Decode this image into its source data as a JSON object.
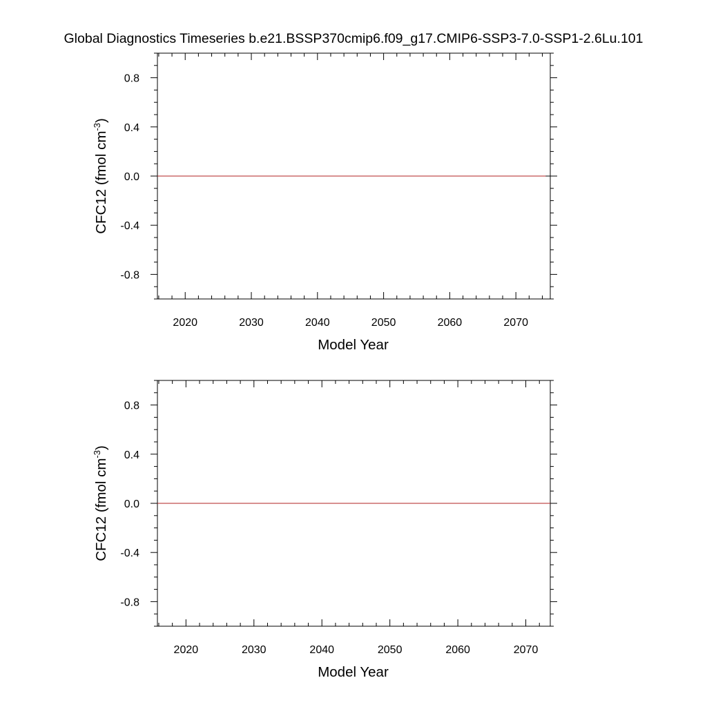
{
  "title": "Global Diagnostics Timeseries b.e21.BSSP370cmip6.f09_g17.CMIP6-SSP3-7.0-SSP1-2.6Lu.101",
  "chart_data": [
    {
      "type": "line",
      "xlabel": "Model Year",
      "ylabel": "CFC12 (fmol cm",
      "ylabel_sup": "-3",
      "ylabel_close": ")",
      "xlim": [
        2015.8,
        2075.2
      ],
      "ylim": [
        -1.0,
        1.0
      ],
      "x_ticks": [
        2020,
        2030,
        2040,
        2050,
        2060,
        2070
      ],
      "y_ticks": [
        0.8,
        0.4,
        0.0,
        -0.4,
        -0.8
      ],
      "y_tick_labels": [
        "0.8",
        "0.4",
        "0.0",
        "-0.4",
        "-0.8"
      ],
      "series": [
        {
          "color": "#b22222",
          "x": [
            2015.8,
            2074.5
          ],
          "y": [
            0.0,
            0.0
          ]
        }
      ],
      "grid": false
    },
    {
      "type": "line",
      "xlabel": "Model Year",
      "ylabel": "CFC12 (fmol cm",
      "ylabel_sup": "-3",
      "ylabel_close": ")",
      "xlim": [
        2015.8,
        2073.6
      ],
      "ylim": [
        -1.0,
        1.0
      ],
      "x_ticks": [
        2020,
        2030,
        2040,
        2050,
        2060,
        2070
      ],
      "y_ticks": [
        0.8,
        0.4,
        0.0,
        -0.4,
        -0.8
      ],
      "y_tick_labels": [
        "0.8",
        "0.4",
        "0.0",
        "-0.4",
        "-0.8"
      ],
      "series": [
        {
          "color": "#b22222",
          "x": [
            2015.8,
            2073.6
          ],
          "y": [
            0.0,
            0.0
          ]
        }
      ],
      "grid": false
    }
  ]
}
